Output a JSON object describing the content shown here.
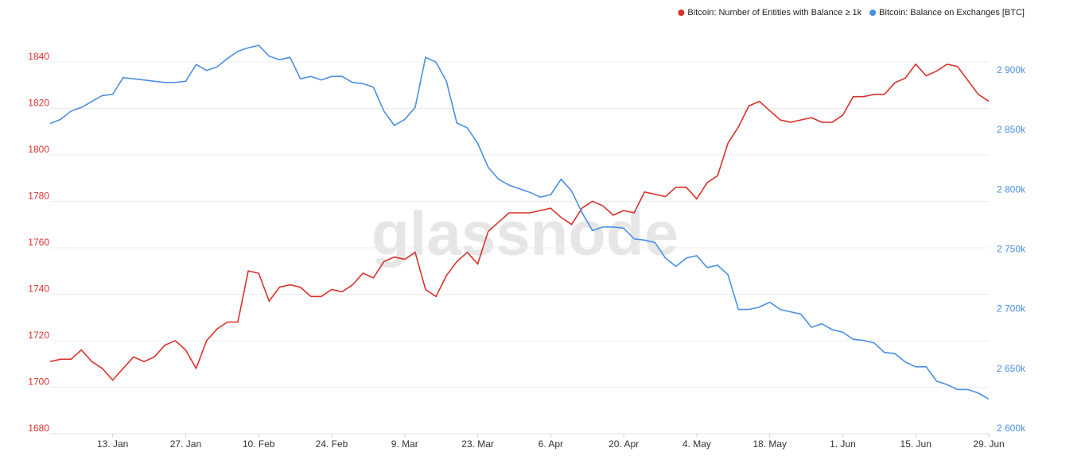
{
  "chart_data": {
    "type": "line",
    "watermark": "glassnode",
    "categories": [
      null,
      null,
      null,
      null,
      null,
      null,
      "13. Jan",
      null,
      null,
      null,
      null,
      null,
      null,
      "27. Jan",
      null,
      null,
      null,
      null,
      null,
      null,
      "10. Feb",
      null,
      null,
      null,
      null,
      null,
      null,
      "24. Feb",
      null,
      null,
      null,
      null,
      null,
      null,
      "9. Mar",
      null,
      null,
      null,
      null,
      null,
      null,
      "23. Mar",
      null,
      null,
      null,
      null,
      null,
      null,
      "6. Apr",
      null,
      null,
      null,
      null,
      null,
      null,
      "20. Apr",
      null,
      null,
      null,
      null,
      null,
      null,
      "4. May",
      null,
      null,
      null,
      null,
      null,
      null,
      "18. May",
      null,
      null,
      null,
      null,
      null,
      null,
      "1. Jun",
      null,
      null,
      null,
      null,
      null,
      null,
      "15. Jun",
      null,
      null,
      null,
      null,
      null,
      null,
      "29. Jun"
    ],
    "series": [
      {
        "name": "Bitcoin: Number of Entities with Balance ≥ 1k",
        "color": "#d8322a",
        "axis": "y",
        "values": [
          1709,
          1710,
          1710,
          1714,
          1709,
          1706,
          1701,
          1706,
          1711,
          1709,
          1711,
          1716,
          1718,
          1714,
          1706,
          1718,
          1723,
          1726,
          1726,
          1748,
          1747,
          1735,
          1741,
          1742,
          1741,
          1737,
          1737,
          1740,
          1739,
          1742,
          1747,
          1745,
          1752,
          1754,
          1753,
          1756,
          1740,
          1737,
          1746,
          1752,
          1756,
          1751,
          1765,
          1769,
          1773,
          1773,
          1773,
          1774,
          1775,
          1771,
          1768,
          1775,
          1778,
          1776,
          1772,
          1774,
          1773,
          1782,
          1781,
          1780,
          1784,
          1784,
          1779,
          1786,
          1789,
          1803,
          1810,
          1819,
          1821,
          1817,
          1813,
          1812,
          1813,
          1814,
          1812,
          1812,
          1815,
          1823,
          1823,
          1824,
          1824,
          1829,
          1831,
          1837,
          1832,
          1834,
          1837,
          1836,
          1830,
          1824,
          1821
        ]
      },
      {
        "name": "Bitcoin: Balance on Exchanges [BTC]",
        "color": "#4a8fe3",
        "axis": "y2",
        "values": [
          2855600,
          2859000,
          2866000,
          2869000,
          2874000,
          2879000,
          2880000,
          2894000,
          2893000,
          2892000,
          2891000,
          2890000,
          2890000,
          2891000,
          2905000,
          2900000,
          2903000,
          2910000,
          2916000,
          2919000,
          2921000,
          2912000,
          2909000,
          2911000,
          2893000,
          2895000,
          2892000,
          2895000,
          2895000,
          2890000,
          2889000,
          2886000,
          2866000,
          2854000,
          2859000,
          2869000,
          2911000,
          2907000,
          2891000,
          2856000,
          2852000,
          2839000,
          2819000,
          2809000,
          2804000,
          2801000,
          2798000,
          2794000,
          2796000,
          2809000,
          2799000,
          2781000,
          2766000,
          2769000,
          2769000,
          2768000,
          2759000,
          2758000,
          2756000,
          2743000,
          2736000,
          2743000,
          2745000,
          2735000,
          2737000,
          2729000,
          2700000,
          2700000,
          2702000,
          2706000,
          2700000,
          2698000,
          2696000,
          2685000,
          2688000,
          2683000,
          2681000,
          2675000,
          2674000,
          2672000,
          2664000,
          2663000,
          2656000,
          2652000,
          2652000,
          2640000,
          2637000,
          2633000,
          2633000,
          2630000,
          2625000
        ]
      }
    ],
    "ylim": [
      1680,
      1860
    ],
    "yticks": [
      1680,
      1700,
      1720,
      1740,
      1760,
      1780,
      1800,
      1820,
      1840
    ],
    "y2lim": [
      2600000,
      2950000
    ],
    "y2ticks": [
      {
        "value": 2600000,
        "label": "2 600k"
      },
      {
        "value": 2650000,
        "label": "2 650k"
      },
      {
        "value": 2700000,
        "label": "2 700k"
      },
      {
        "value": 2750000,
        "label": "2 750k"
      },
      {
        "value": 2800000,
        "label": "2 800k"
      },
      {
        "value": 2850000,
        "label": "2 850k"
      },
      {
        "value": 2900000,
        "label": "2 900k"
      }
    ],
    "grid": true,
    "legend": "top-right"
  }
}
